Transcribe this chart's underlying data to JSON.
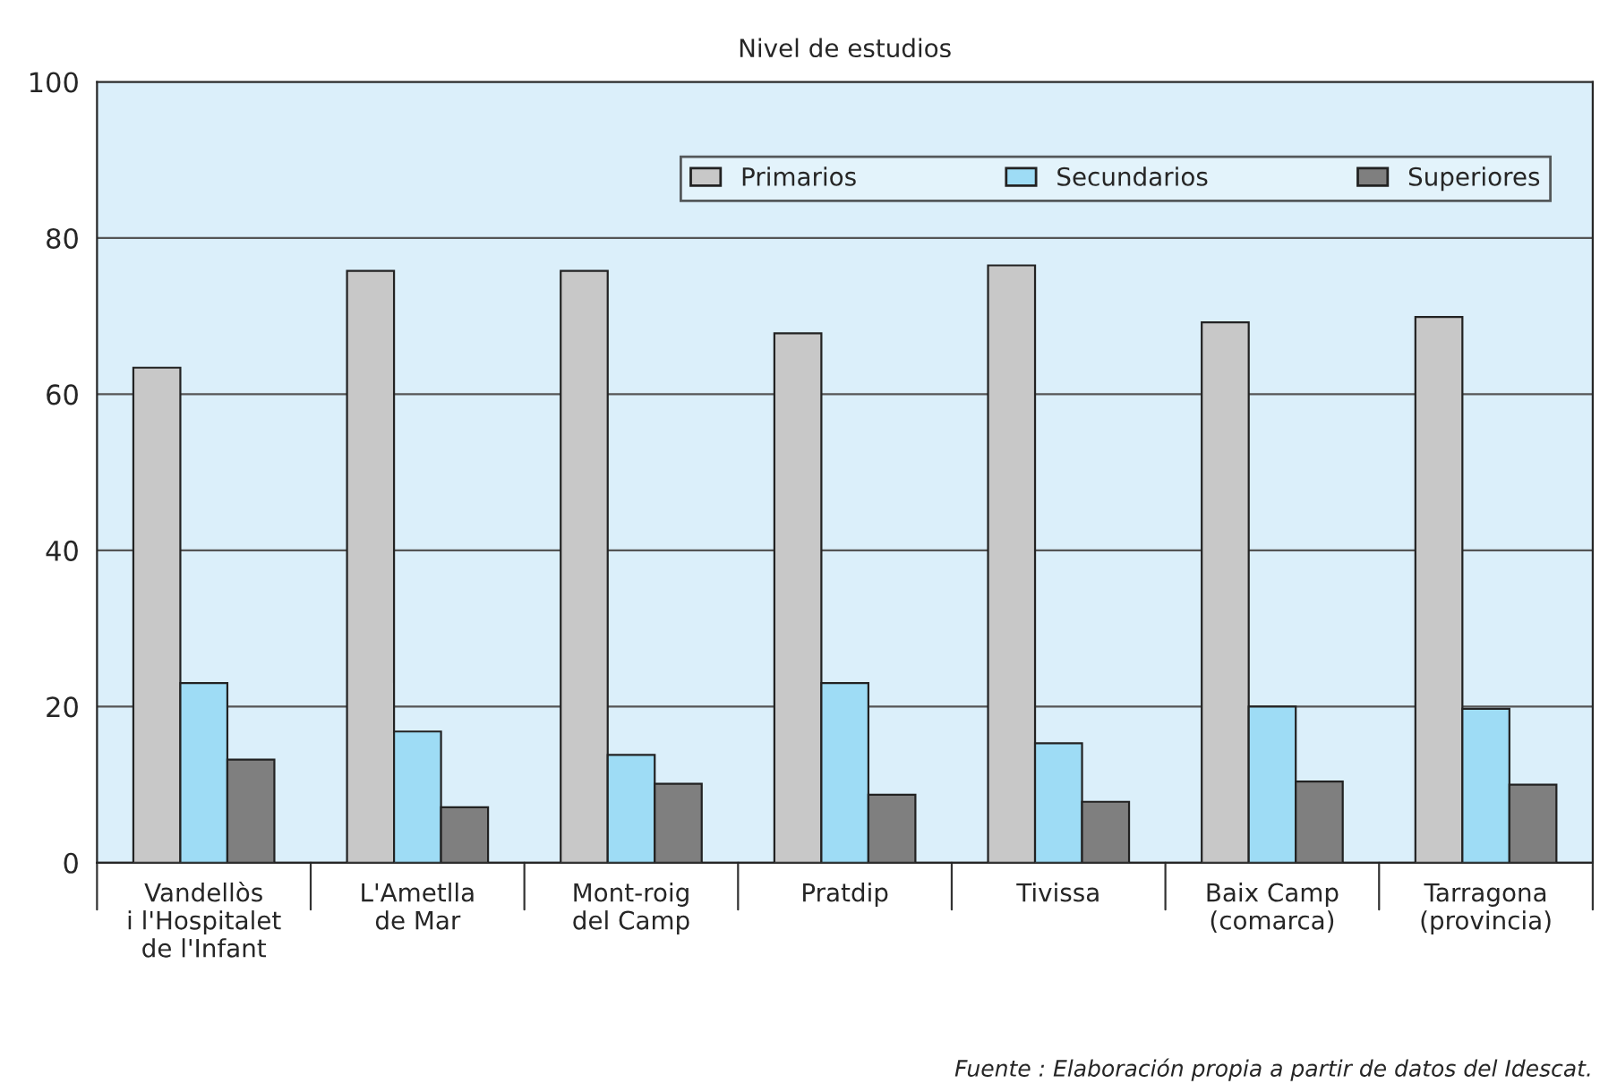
{
  "chart_data": {
    "type": "bar",
    "title": "Nivel de estudios",
    "categories": [
      "Vandellòs\ni l'Hospitalet\nde l'Infant",
      "L'Ametlla\nde Mar",
      "Mont-roig\ndel Camp",
      "Pratdip",
      "Tivissa",
      "Baix Camp\n(comarca)",
      "Tarragona\n(provincia)"
    ],
    "series": [
      {
        "name": "Primarios",
        "color": "#c8c8c8",
        "values": [
          63.4,
          75.8,
          75.8,
          67.8,
          76.5,
          69.2,
          69.9
        ]
      },
      {
        "name": "Secundarios",
        "color": "#9edcf5",
        "values": [
          23.0,
          16.8,
          13.8,
          23.0,
          15.3,
          20.0,
          19.7
        ]
      },
      {
        "name": "Superiores",
        "color": "#7f7f7f",
        "values": [
          13.2,
          7.1,
          10.1,
          8.7,
          7.8,
          10.4,
          10.0
        ]
      }
    ],
    "ylim": [
      0,
      100
    ],
    "yticks": [
      0,
      20,
      40,
      60,
      80,
      100
    ],
    "grid": "y",
    "legend": "top right",
    "annotations": [
      "Fuente : Elaboración propia a partir de datos del Idescat."
    ]
  }
}
